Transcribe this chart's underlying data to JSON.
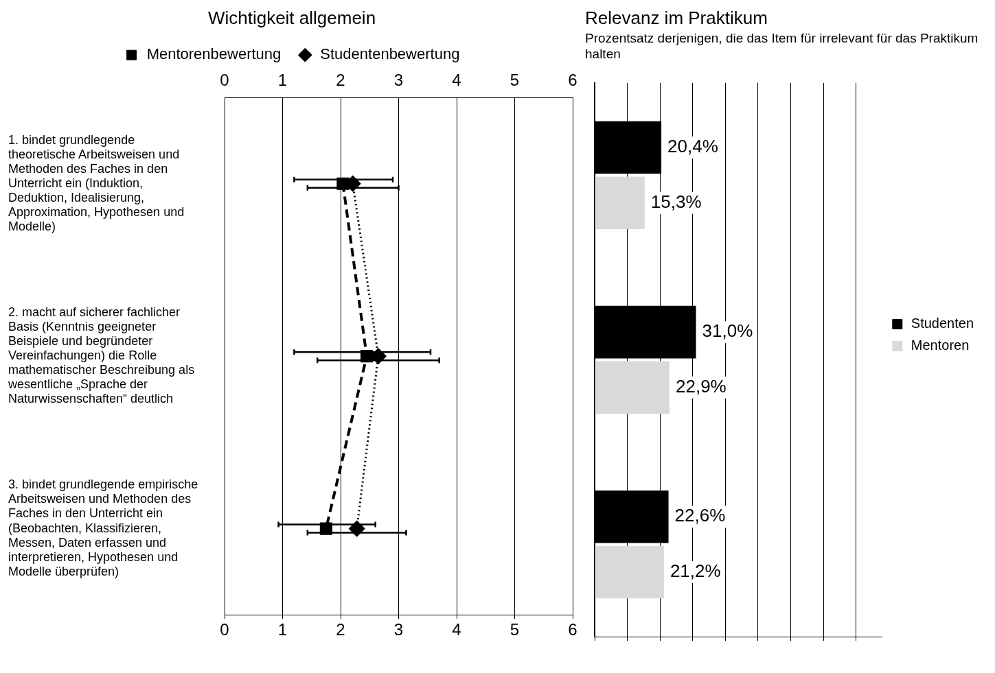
{
  "chart_data": [
    {
      "type": "line",
      "orientation": "horizontal",
      "title": "Wichtigkeit allgemein",
      "categories": [
        "1. bindet grundlegende theoretische Arbeitsweisen und Methoden des Faches in den Unterricht ein (Induktion, Deduktion, Idealisierung, Approximation, Hypothesen und Modelle)",
        "2. macht auf sicherer fachlicher Basis (Kenntnis geeigneter Beispiele und begründeter Vereinfachungen) die Rolle mathematischer Beschreibung als wesentliche „Sprache der Naturwissenschaften“ deutlich",
        "3. bindet grundlegende empirische Arbeitsweisen und Methoden des Faches in den Unterricht ein (Beobachten, Klassifizieren, Messen, Daten erfassen und interpretieren, Hypothesen und Modelle überprüfen)"
      ],
      "xlim": [
        0,
        6
      ],
      "xticks": [
        0,
        1,
        2,
        3,
        4,
        5,
        6
      ],
      "x2lim": [
        0,
        6
      ],
      "x2ticks": [
        0,
        1,
        2,
        3,
        4,
        5,
        6
      ],
      "grid": "x",
      "legend": "top",
      "series": [
        {
          "name": "Mentorenbewertung",
          "color": "#000000",
          "values": [
            2.04,
            2.45,
            1.75
          ],
          "errors": [
            [
              1.2,
              2.9
            ],
            [
              1.2,
              3.55
            ],
            [
              0.93,
              2.6
            ]
          ],
          "marker": "square",
          "line_style": "dashed"
        },
        {
          "name": "Studentenbewertung",
          "color": "#000000",
          "values": [
            2.21,
            2.65,
            2.28
          ],
          "errors": [
            [
              1.43,
              3.0
            ],
            [
              1.6,
              3.7
            ],
            [
              1.43,
              3.13
            ]
          ],
          "marker": "diamond",
          "line_style": "dotted"
        }
      ]
    },
    {
      "type": "bar",
      "orientation": "horizontal",
      "title": "Relevanz im Praktikum",
      "subtitle": "Prozentsatz derjenigen, die das Item für irrelevant für das Praktikum halten",
      "categories": [
        null,
        null,
        null
      ],
      "xlim": [
        0,
        88
      ],
      "xticks": [
        {
          "value": 0,
          "label": null
        },
        {
          "value": 10,
          "label": null
        },
        {
          "value": 20,
          "label": null
        },
        {
          "value": 30,
          "label": null
        },
        {
          "value": 40,
          "label": null
        },
        {
          "value": 50,
          "label": null
        },
        {
          "value": 60,
          "label": null
        },
        {
          "value": 70,
          "label": null
        },
        {
          "value": 80,
          "label": null
        }
      ],
      "grid": "x",
      "legend": "right",
      "series": [
        {
          "name": "Studenten",
          "color": "#000000",
          "values": [
            20.4,
            31.0,
            22.6
          ],
          "value_labels": [
            "20,4%",
            "31,0%",
            "22,6%"
          ]
        },
        {
          "name": "Mentoren",
          "color": "#d9d9d9",
          "values": [
            15.3,
            22.9,
            21.2
          ],
          "value_labels": [
            "15,3%",
            "22,9%",
            "21,2%"
          ]
        }
      ]
    }
  ]
}
